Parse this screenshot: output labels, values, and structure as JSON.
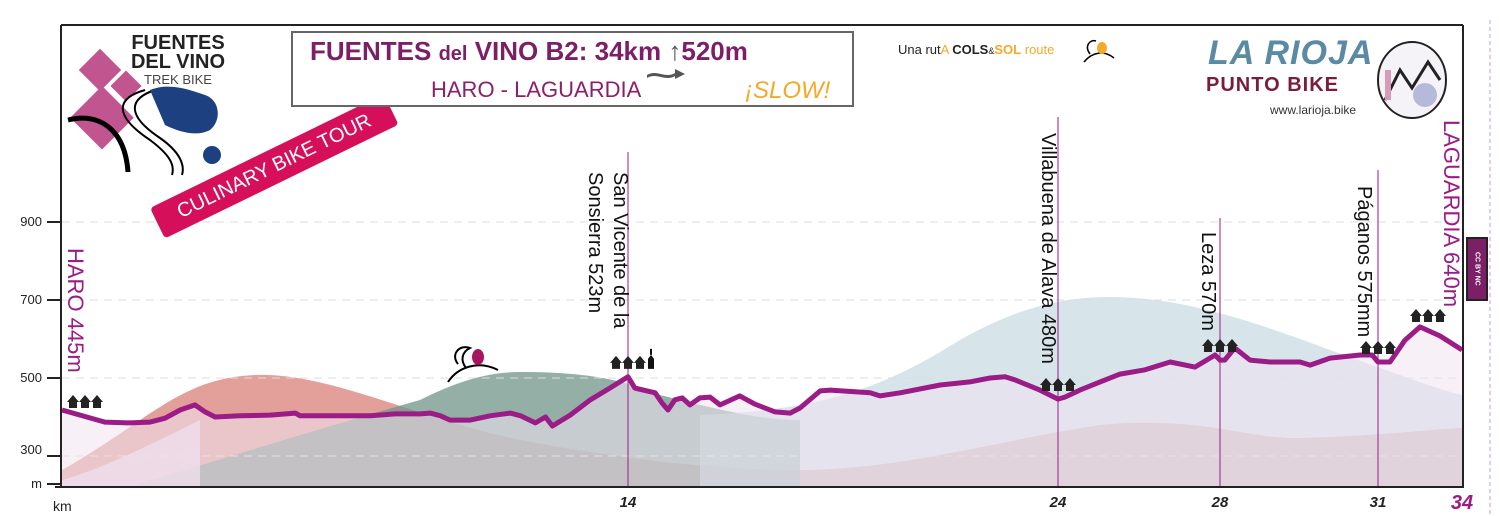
{
  "header": {
    "title_main": "FUENTES",
    "title_del": "del",
    "title_rest": "VINO B2: 34km",
    "title_climb": "520m",
    "route": "HARO - LAGUARDIA",
    "pace": "¡SLOW!",
    "climb_icon": "up-arrow-icon",
    "distance_icon": "wavy-arrow-icon"
  },
  "logo_left": {
    "line1": "FUENTES",
    "line2": "DEL VINO",
    "line3": "TREK BIKE"
  },
  "ribbon": "CULINARY BIKE TOUR",
  "cols_sol": {
    "prefix": "Una rut",
    "a": "A",
    "cols": "COLS",
    "amp": "&",
    "sol": "SOL",
    "route": "route"
  },
  "logo_right": {
    "title": "LA RIOJA",
    "subtitle": "PUNTO BIKE",
    "url": "www.larioja.bike"
  },
  "license": "CC BY NC",
  "colors": {
    "profile": "#9b1b87",
    "accent": "#7d1f66",
    "ribbon": "#d60f5a",
    "slow": "#f4a92a",
    "rioja": "#5a8aa4"
  },
  "chart_data": {
    "type": "area",
    "xlabel": "km",
    "ylabel": "m",
    "xlim": [
      0,
      34
    ],
    "ylim": [
      200,
      900
    ],
    "grid": true,
    "x_ticks": [
      {
        "value": 14,
        "label": "14"
      },
      {
        "value": 24,
        "label": "24"
      },
      {
        "value": 28,
        "label": "28"
      },
      {
        "value": 31,
        "label": "31"
      },
      {
        "value": 34,
        "label": "34"
      }
    ],
    "y_ticks": [
      {
        "value": 900,
        "label": "900"
      },
      {
        "value": 700,
        "label": "700"
      },
      {
        "value": 500,
        "label": "500"
      },
      {
        "value": 300,
        "label": "300"
      }
    ],
    "profile": {
      "x": [
        0,
        1.06,
        1.68,
        2.18,
        2.55,
        2.92,
        3.29,
        3.54,
        3.79,
        4.41,
        5.15,
        5.77,
        5.89,
        6.63,
        7.62,
        8.24,
        8.86,
        9.11,
        9.36,
        9.6,
        10.1,
        10.59,
        11.09,
        11.34,
        11.71,
        11.96,
        12.13,
        12.57,
        13.07,
        13.55,
        14,
        14.16,
        14.63,
        14.79,
        14.93,
        15.09,
        15.26,
        15.44,
        15.67,
        15.91,
        16.14,
        16.6,
        16.95,
        17.42,
        17.77,
        18,
        18.47,
        18.7,
        19.63,
        19.86,
        20.33,
        21.26,
        21.95,
        22.42,
        22.77,
        23,
        23.58,
        24,
        24.17,
        24.54,
        25.04,
        25.53,
        26.15,
        26.77,
        27.38,
        27.88,
        28,
        28.09,
        28.28,
        28.57,
        28.95,
        29.52,
        29.71,
        30.09,
        30.66,
        30.89,
        31,
        31.25,
        31.43,
        31.96,
        32.5,
        33.21,
        34
      ],
      "y": [
        418,
        387,
        385,
        387,
        397,
        418,
        431,
        413,
        400,
        403,
        405,
        410,
        403,
        403,
        403,
        408,
        408,
        410,
        403,
        392,
        392,
        403,
        410,
        403,
        385,
        400,
        377,
        405,
        444,
        474,
        503,
        474,
        462,
        436,
        418,
        444,
        449,
        431,
        449,
        451,
        431,
        454,
        433,
        413,
        410,
        423,
        467,
        469,
        462,
        454,
        462,
        482,
        490,
        500,
        503,
        495,
        469,
        446,
        451,
        469,
        490,
        510,
        521,
        541,
        528,
        559,
        546,
        546,
        577,
        546,
        541,
        541,
        533,
        551,
        559,
        559,
        541,
        541,
        541,
        597,
        631,
        608,
        572
      ]
    },
    "waypoints": [
      {
        "km": 0,
        "label": "HARO 445m",
        "icon": "village-icon"
      },
      {
        "km": 14,
        "label_line1": "San Vicente de la",
        "label_line2": "Sonsierra 523m",
        "icon": "church-village-icon"
      },
      {
        "km": 24,
        "label": "Villabuena de Alava 480m",
        "icon": "village-icon"
      },
      {
        "km": 28,
        "label": "Leza 570m",
        "icon": "village-icon"
      },
      {
        "km": 31,
        "label": "Páganos 575mm",
        "icon": "village-icon"
      },
      {
        "km": 34,
        "label": "LAGUARDIA 640m",
        "icon": "village-icon"
      }
    ]
  }
}
